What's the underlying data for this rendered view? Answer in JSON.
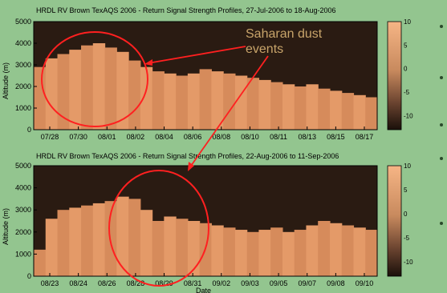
{
  "annotation": {
    "text_line1": "Saharan dust",
    "text_line2": "events",
    "color": "#ff2020",
    "text_color": "#c8a46a"
  },
  "colors": {
    "background": "#93c58f",
    "plot_dark": "#2a1b12",
    "plot_light": "#f3ad7c",
    "axes": "#000000"
  },
  "chart_data": [
    {
      "type": "heatmap",
      "title": "HRDL RV Brown TexAQS 2006 - Return Signal Strength Profiles, 27-Jul-2006 to 18-Aug-2006",
      "xlabel": "",
      "ylabel": "Altitude (m)",
      "ylim": [
        0,
        5000
      ],
      "y_ticks": [
        0,
        1000,
        2000,
        3000,
        4000,
        5000
      ],
      "x_ticks": [
        "07/28",
        "07/30",
        "08/01",
        "08/02",
        "08/04",
        "08/06",
        "08/08",
        "08/10",
        "08/11",
        "08/13",
        "08/15",
        "08/17"
      ],
      "colorbar": {
        "range": [
          -13,
          10
        ],
        "ticks": [
          10,
          5,
          0,
          -5,
          -10
        ]
      },
      "boundary_layer_top_m": [
        2900,
        3300,
        3500,
        3700,
        3900,
        4000,
        3800,
        3600,
        3200,
        2900,
        2700,
        2600,
        2500,
        2600,
        2800,
        2700,
        2600,
        2500,
        2400,
        2300,
        2200,
        2100,
        2000,
        2100,
        1900,
        1800,
        1700,
        1600,
        1500
      ]
    },
    {
      "type": "heatmap",
      "title": "HRDL RV Brown TexAQS 2006 - Return Signal Strength Profiles, 22-Aug-2006 to 11-Sep-2006",
      "xlabel": "Date",
      "ylabel": "Altitude (m)",
      "ylim": [
        0,
        5000
      ],
      "y_ticks": [
        0,
        1000,
        2000,
        3000,
        4000,
        5000
      ],
      "x_ticks": [
        "08/23",
        "08/24",
        "08/26",
        "08/28",
        "08/29",
        "08/31",
        "09/02",
        "09/03",
        "09/05",
        "09/07",
        "09/08",
        "09/10"
      ],
      "colorbar": {
        "range": [
          -13,
          10
        ],
        "ticks": [
          10,
          5,
          0,
          -5,
          -10
        ]
      },
      "boundary_layer_top_m": [
        1200,
        2600,
        3000,
        3100,
        3200,
        3300,
        3400,
        3600,
        3500,
        3000,
        2500,
        2700,
        2600,
        2500,
        2400,
        2300,
        2200,
        2100,
        2000,
        2100,
        2200,
        2000,
        2100,
        2300,
        2500,
        2400,
        2300,
        2200,
        2100
      ]
    }
  ]
}
